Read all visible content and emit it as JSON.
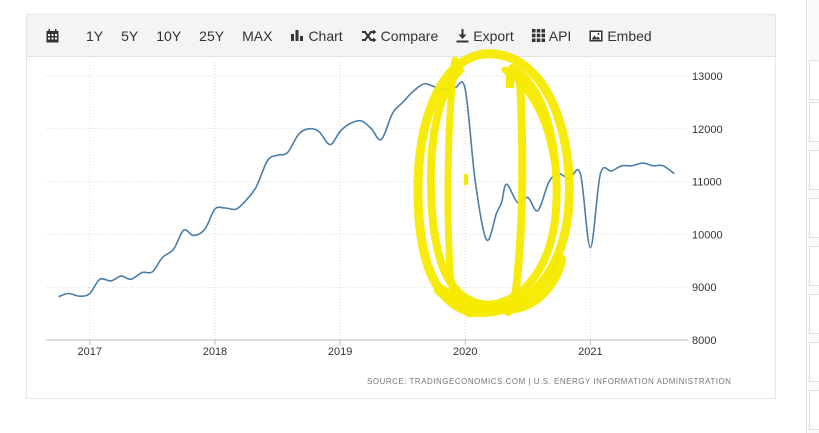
{
  "toolbar": {
    "items": [
      {
        "label": "1Y"
      },
      {
        "label": "5Y"
      },
      {
        "label": "10Y"
      },
      {
        "label": "25Y"
      },
      {
        "label": "MAX"
      },
      {
        "label": "Chart",
        "icon": "bar-chart-icon"
      },
      {
        "label": "Compare",
        "icon": "shuffle-icon"
      },
      {
        "label": "Export",
        "icon": "download-icon"
      },
      {
        "label": "API",
        "icon": "grid-icon"
      },
      {
        "label": "Embed",
        "icon": "image-icon"
      }
    ],
    "calendar_icon": "calendar-icon"
  },
  "source": "SOURCE: TRADINGECONOMICS.COM  |  U.S. ENERGY INFORMATION ADMINISTRATION",
  "colors": {
    "line": "#4a7ea8",
    "highlight": "#f5ea00",
    "grid": "#d9d9d9"
  },
  "chart_data": {
    "type": "line",
    "x_ticks": [
      "2017",
      "2018",
      "2019",
      "2020",
      "2021"
    ],
    "y_ticks": [
      "8000",
      "9000",
      "10000",
      "11000",
      "12000",
      "13000"
    ],
    "ylim": [
      8000,
      13000
    ],
    "xlim": [
      2016.65,
      2021.78
    ],
    "y_axis_position": "right",
    "grid": true,
    "series": [
      {
        "x": [
          2016.75,
          2016.83,
          2016.92,
          2017.0,
          2017.08,
          2017.17,
          2017.25,
          2017.33,
          2017.42,
          2017.5,
          2017.58,
          2017.67,
          2017.75,
          2017.83,
          2017.92,
          2018.0,
          2018.08,
          2018.17,
          2018.25,
          2018.33,
          2018.42,
          2018.5,
          2018.58,
          2018.67,
          2018.75,
          2018.83,
          2018.92,
          2019.0,
          2019.08,
          2019.17,
          2019.25,
          2019.33,
          2019.42,
          2019.5,
          2019.58,
          2019.67,
          2019.75,
          2019.83,
          2019.92,
          2020.0,
          2020.08,
          2020.17,
          2020.25,
          2020.29,
          2020.33,
          2020.42,
          2020.5,
          2020.58,
          2020.67,
          2020.75,
          2020.83,
          2020.92,
          2021.0,
          2021.08,
          2021.17,
          2021.25,
          2021.33,
          2021.42,
          2021.5,
          2021.58,
          2021.67
        ],
        "values": [
          8820,
          8880,
          8830,
          8880,
          9150,
          9120,
          9210,
          9150,
          9280,
          9290,
          9560,
          9720,
          10080,
          9980,
          10100,
          10480,
          10500,
          10480,
          10650,
          10900,
          11400,
          11500,
          11550,
          11900,
          12000,
          11950,
          11700,
          11950,
          12100,
          12150,
          12000,
          11800,
          12300,
          12500,
          12700,
          12850,
          12800,
          12750,
          12780,
          12750,
          11000,
          9900,
          10400,
          10600,
          10950,
          10600,
          10700,
          10450,
          11000,
          11150,
          11050,
          11150,
          9750,
          11150,
          11200,
          11300,
          11300,
          11350,
          11300,
          11300,
          11150
        ]
      }
    ],
    "annotations": [
      "yellow hand-drawn ellipse highlighting late 2019 to mid 2020"
    ]
  }
}
